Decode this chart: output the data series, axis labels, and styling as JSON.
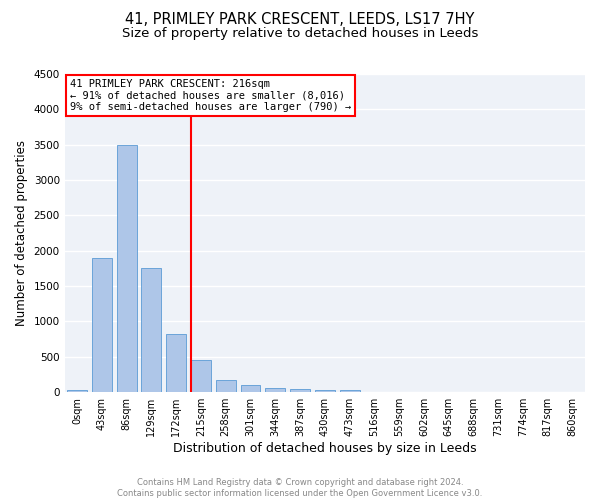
{
  "title": "41, PRIMLEY PARK CRESCENT, LEEDS, LS17 7HY",
  "subtitle": "Size of property relative to detached houses in Leeds",
  "xlabel": "Distribution of detached houses by size in Leeds",
  "ylabel": "Number of detached properties",
  "bar_labels": [
    "0sqm",
    "43sqm",
    "86sqm",
    "129sqm",
    "172sqm",
    "215sqm",
    "258sqm",
    "301sqm",
    "344sqm",
    "387sqm",
    "430sqm",
    "473sqm",
    "516sqm",
    "559sqm",
    "602sqm",
    "645sqm",
    "688sqm",
    "731sqm",
    "774sqm",
    "817sqm",
    "860sqm"
  ],
  "bar_values": [
    30,
    1900,
    3500,
    1750,
    830,
    450,
    175,
    100,
    55,
    40,
    35,
    30,
    5,
    3,
    2,
    2,
    1,
    1,
    1,
    1,
    0
  ],
  "bar_color": "#aec6e8",
  "bar_edge_color": "#5b9bd5",
  "vline_bin_index": 5,
  "annotation_text": "41 PRIMLEY PARK CRESCENT: 216sqm\n← 91% of detached houses are smaller (8,016)\n9% of semi-detached houses are larger (790) →",
  "annotation_box_color": "white",
  "annotation_box_edge_color": "red",
  "vline_color": "red",
  "ylim": [
    0,
    4500
  ],
  "yticks": [
    0,
    500,
    1000,
    1500,
    2000,
    2500,
    3000,
    3500,
    4000,
    4500
  ],
  "footnote": "Contains HM Land Registry data © Crown copyright and database right 2024.\nContains public sector information licensed under the Open Government Licence v3.0.",
  "bg_color": "#eef2f8",
  "grid_color": "white",
  "title_fontsize": 10.5,
  "subtitle_fontsize": 9.5,
  "xlabel_fontsize": 9,
  "ylabel_fontsize": 8.5,
  "tick_fontsize": 7,
  "annotation_fontsize": 7.5
}
